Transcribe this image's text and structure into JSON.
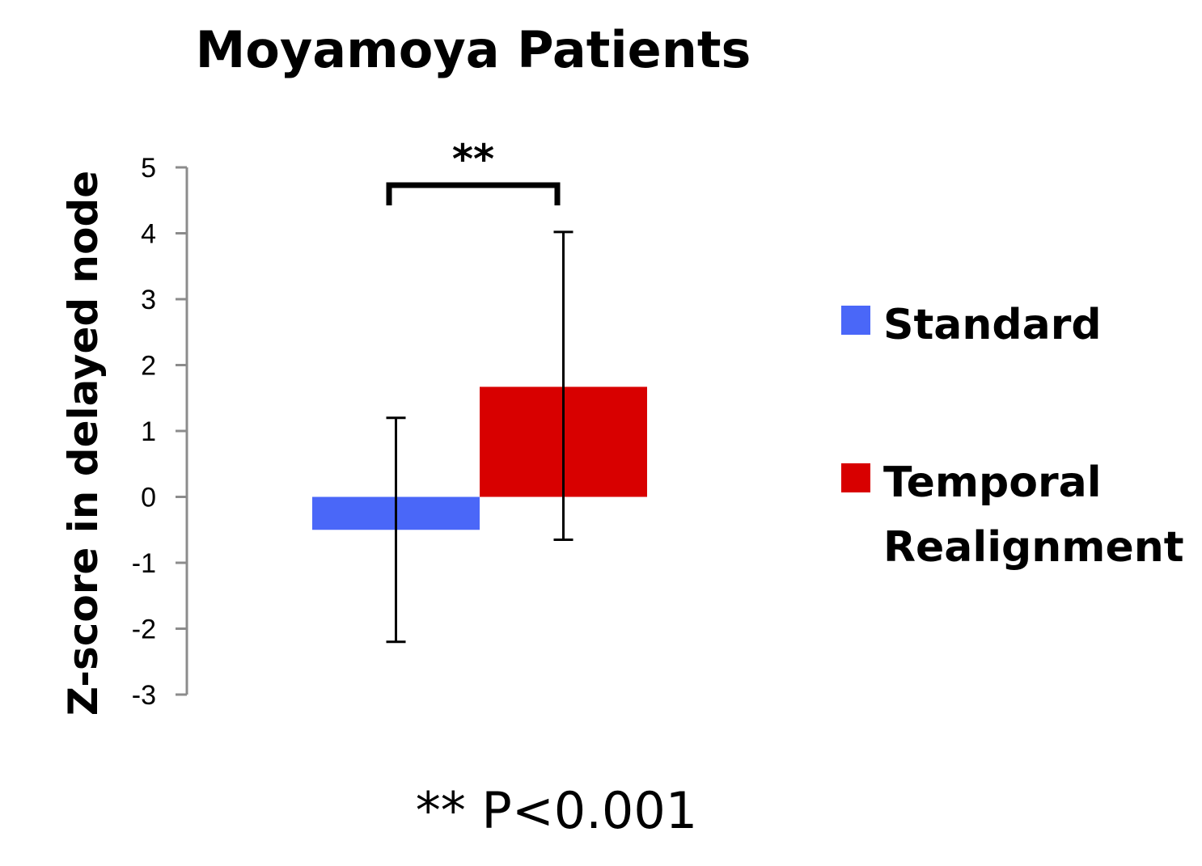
{
  "chart_data": {
    "type": "bar",
    "title": "Moyamoya Patients",
    "ylabel": "Z-score in delayed node",
    "xlabel": "",
    "ylim": [
      -3,
      5
    ],
    "yticks": [
      5,
      4,
      3,
      2,
      1,
      0,
      -1,
      -2,
      -3
    ],
    "grid": false,
    "legend_position": "right",
    "series": [
      {
        "name": "Standard",
        "value": -0.5,
        "error_low": -2.2,
        "error_high": 1.2,
        "color": "#4a67f8"
      },
      {
        "name": "Temporal Realignment",
        "legend_lines": [
          "Temporal",
          "Realignment"
        ],
        "value": 1.67,
        "error_low": -0.65,
        "error_high": 4.02,
        "color": "#d80000"
      }
    ],
    "significance": {
      "marker": "**",
      "between": [
        "Standard",
        "Temporal Realignment"
      ]
    },
    "footnote": "** P<0.001"
  }
}
